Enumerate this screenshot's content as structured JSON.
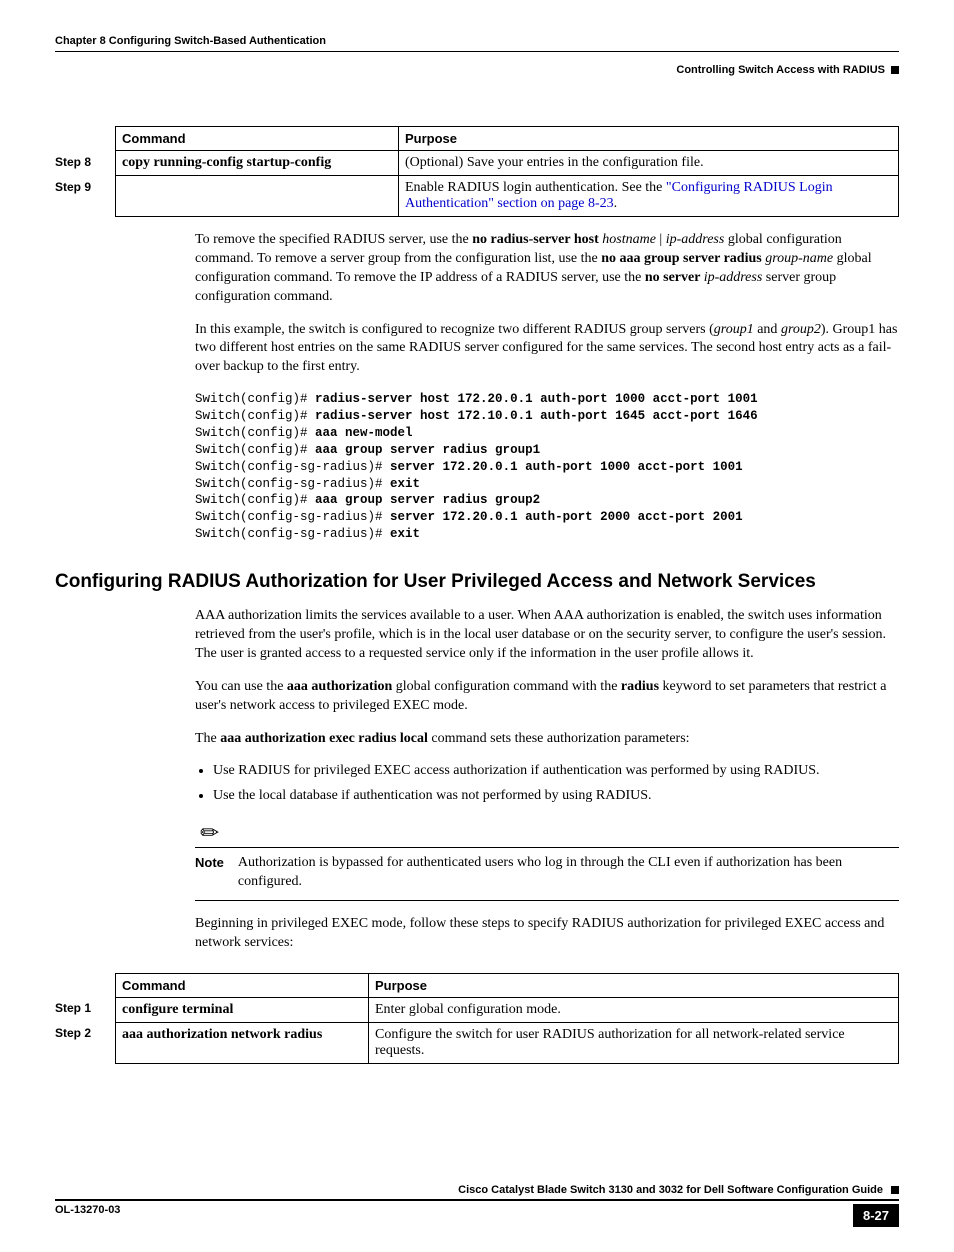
{
  "header": {
    "chapter": "Chapter 8      Configuring Switch-Based Authentication",
    "section": "Controlling Switch Access with RADIUS"
  },
  "table1": {
    "headers": {
      "command": "Command",
      "purpose": "Purpose"
    },
    "rows": [
      {
        "step": "Step 8",
        "command": "copy running-config startup-config",
        "purpose_plain": "(Optional) Save your entries in the configuration file."
      },
      {
        "step": "Step 9",
        "command": "",
        "purpose_prefix": "Enable RADIUS login authentication. See the ",
        "purpose_link": "\"Configuring RADIUS Login Authentication\" section on page 8-23",
        "purpose_suffix": "."
      }
    ]
  },
  "para1": {
    "t1": "To remove the specified RADIUS server, use the ",
    "b1": "no radius-server host ",
    "i1": "hostname",
    "sep": " | ",
    "i2": "ip-address",
    "t2": " global configuration command. To remove a server group from the configuration list, use the ",
    "b2": "no aaa group server radius ",
    "i3": "group-name",
    "t3": " global configuration command. To remove the IP address of a RADIUS server, use the ",
    "b3": "no server ",
    "i4": "ip-address",
    "t4": " server group configuration command."
  },
  "para2": {
    "t1": "In this example, the switch is configured to recognize two different RADIUS group servers (",
    "i1": "group1",
    "t2": " and ",
    "i2": "group2",
    "t3": "). Group1 has two different host entries on the same RADIUS server configured for the same services. The second host entry acts as a fail-over backup to the first entry."
  },
  "cli": [
    {
      "p": "Switch(config)# ",
      "c": "radius-server host 172.20.0.1 auth-port 1000 acct-port 1001"
    },
    {
      "p": "Switch(config)# ",
      "c": "radius-server host 172.10.0.1 auth-port 1645 acct-port 1646"
    },
    {
      "p": "Switch(config)# ",
      "c": "aaa new-model"
    },
    {
      "p": "Switch(config)# ",
      "c": "aaa group server radius group1"
    },
    {
      "p": "Switch(config-sg-radius)# ",
      "c": "server 172.20.0.1 auth-port 1000 acct-port 1001"
    },
    {
      "p": "Switch(config-sg-radius)# ",
      "c": "exit"
    },
    {
      "p": "Switch(config)# ",
      "c": "aaa group server radius group2"
    },
    {
      "p": "Switch(config-sg-radius)# ",
      "c": "server 172.20.0.1 auth-port 2000 acct-port 2001"
    },
    {
      "p": "Switch(config-sg-radius)# ",
      "c": "exit"
    }
  ],
  "h2": "Configuring RADIUS Authorization for User Privileged Access and Network Services",
  "para3": "AAA authorization limits the services available to a user. When AAA authorization is enabled, the switch uses information retrieved from the user's profile, which is in the local user database or on the security server, to configure the user's session. The user is granted access to a requested service only if the information in the user profile allows it.",
  "para4": {
    "t1": "You can use the ",
    "b1": "aaa authorization",
    "t2": " global configuration command with the ",
    "b2": "radius",
    "t3": " keyword to set parameters that restrict a user's network access to privileged EXEC mode."
  },
  "para5": {
    "t1": "The ",
    "b1": "aaa authorization exec radius local",
    "t2": " command sets these authorization parameters:"
  },
  "bullets": [
    "Use RADIUS for privileged EXEC access authorization if authentication was performed by using RADIUS.",
    "Use the local database if authentication was not performed by using RADIUS."
  ],
  "note": {
    "label": "Note",
    "text": "Authorization is bypassed for authenticated users who log in through the CLI even if authorization has been configured."
  },
  "para6": "Beginning in privileged EXEC mode, follow these steps to specify RADIUS authorization for privileged EXEC access and network services:",
  "table2": {
    "headers": {
      "command": "Command",
      "purpose": "Purpose"
    },
    "rows": [
      {
        "step": "Step 1",
        "command": "configure terminal",
        "purpose": "Enter global configuration mode."
      },
      {
        "step": "Step 2",
        "command": "aaa authorization network radius",
        "purpose": "Configure the switch for user RADIUS authorization for all network-related service requests."
      }
    ]
  },
  "footer": {
    "doc_title": "Cisco Catalyst Blade Switch 3130 and 3032 for Dell Software Configuration Guide",
    "doc_id": "OL-13270-03",
    "page": "8-27"
  }
}
